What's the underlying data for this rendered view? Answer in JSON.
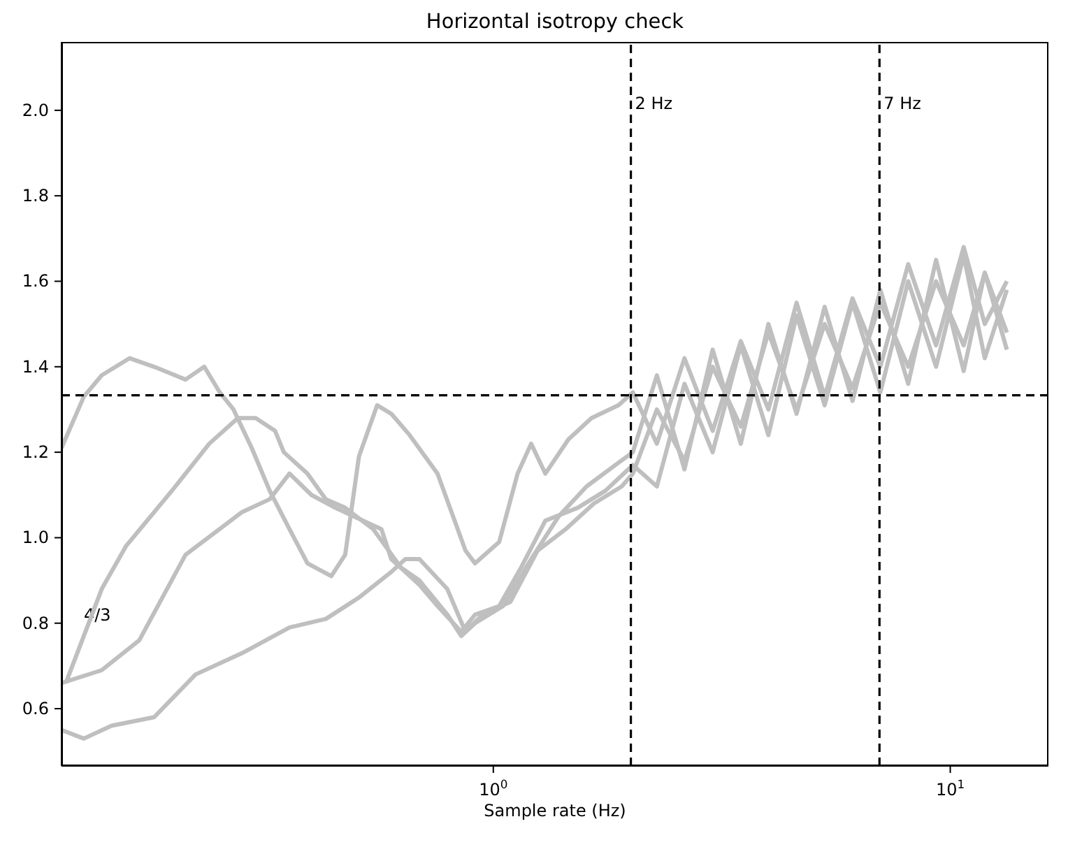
{
  "chart_data": {
    "type": "line",
    "title": "Horizontal isotropy check",
    "xlabel": "Sample rate (Hz)",
    "log": "x",
    "grid": false,
    "marker": "none",
    "line_style": "solid",
    "xlim": [
      0.1135,
      16.4
    ],
    "xticks": [
      {
        "value": 1,
        "label": "10$^{0}$"
      },
      {
        "value": 10,
        "label": "10$^{1}$"
      }
    ],
    "ylim": [
      0.466,
      2.16
    ],
    "yticks": [
      0.6,
      0.8,
      {
        "value": 1,
        "label": "1.0"
      },
      1.2,
      1.4,
      1.6,
      1.8,
      {
        "value": 2,
        "label": "2.0"
      }
    ],
    "series": [
      {
        "color": "#bfbfbf",
        "x": [
          0.1135,
          0.127,
          0.139,
          0.16,
          0.181,
          0.212,
          0.233,
          0.252,
          0.27,
          0.296,
          0.324,
          0.358,
          0.392,
          0.442,
          0.474,
          0.508,
          0.557,
          0.598,
          0.656,
          0.755,
          0.81,
          0.869,
          0.912,
          1.03,
          1.13,
          1.21,
          1.3,
          1.46,
          1.64,
          1.88,
          2.02,
          2.28,
          2.62,
          3.02,
          3.48,
          4.0,
          4.61,
          5.31,
          6.11,
          7.03,
          8.09,
          9.31,
          10.7,
          11.9,
          13.3
        ],
        "values": [
          1.21,
          1.33,
          1.38,
          1.42,
          1.4,
          1.37,
          1.4,
          1.34,
          1.3,
          1.21,
          1.11,
          1.02,
          0.94,
          0.91,
          0.96,
          1.19,
          1.31,
          1.29,
          1.24,
          1.15,
          1.06,
          0.97,
          0.94,
          0.99,
          1.15,
          1.22,
          1.15,
          1.23,
          1.28,
          1.31,
          1.34,
          1.22,
          1.42,
          1.25,
          1.46,
          1.3,
          1.55,
          1.33,
          1.56,
          1.4,
          1.64,
          1.45,
          1.68,
          1.5,
          1.6
        ]
      },
      {
        "color": "#bfbfbf",
        "x": [
          0.116,
          0.139,
          0.157,
          0.198,
          0.239,
          0.276,
          0.302,
          0.333,
          0.348,
          0.392,
          0.43,
          0.474,
          0.546,
          0.628,
          0.689,
          0.793,
          0.851,
          0.912,
          1.05,
          1.21,
          1.39,
          1.6,
          1.85,
          2.02,
          2.28,
          2.62,
          3.02,
          3.48,
          4.0,
          4.61,
          5.31,
          6.11,
          7.03,
          8.09,
          9.31,
          10.7,
          11.9,
          13.3
        ],
        "values": [
          0.66,
          0.88,
          0.98,
          1.11,
          1.22,
          1.28,
          1.28,
          1.25,
          1.2,
          1.15,
          1.09,
          1.07,
          1.02,
          0.93,
          0.9,
          0.82,
          0.77,
          0.8,
          0.84,
          0.95,
          1.05,
          1.12,
          1.17,
          1.2,
          1.38,
          1.16,
          1.44,
          1.22,
          1.5,
          1.29,
          1.54,
          1.32,
          1.58,
          1.36,
          1.65,
          1.39,
          1.62,
          1.44
        ]
      },
      {
        "color": "#bfbfbf",
        "x": [
          0.1135,
          0.139,
          0.168,
          0.212,
          0.282,
          0.324,
          0.358,
          0.4,
          0.451,
          0.569,
          0.598,
          0.689,
          0.755,
          0.851,
          0.912,
          1.03,
          1.15,
          1.3,
          1.53,
          1.76,
          2.02,
          2.28,
          2.62,
          3.02,
          3.48,
          4.0,
          4.61,
          5.31,
          6.11,
          7.03,
          8.09,
          9.31,
          10.7,
          11.9,
          13.3
        ],
        "values": [
          0.66,
          0.69,
          0.76,
          0.96,
          1.06,
          1.09,
          1.15,
          1.1,
          1.07,
          1.02,
          0.95,
          0.89,
          0.84,
          0.78,
          0.82,
          0.84,
          0.93,
          1.04,
          1.07,
          1.11,
          1.17,
          1.12,
          1.36,
          1.2,
          1.45,
          1.24,
          1.52,
          1.31,
          1.55,
          1.34,
          1.6,
          1.4,
          1.66,
          1.42,
          1.58
        ]
      },
      {
        "color": "#bfbfbf",
        "x": [
          0.1135,
          0.127,
          0.146,
          0.181,
          0.223,
          0.282,
          0.358,
          0.43,
          0.508,
          0.598,
          0.642,
          0.689,
          0.793,
          0.869,
          0.946,
          1.09,
          1.25,
          1.44,
          1.66,
          1.91,
          2.02,
          2.28,
          2.62,
          3.02,
          3.48,
          4.0,
          4.61,
          5.31,
          6.11,
          7.03,
          8.09,
          9.31,
          10.7,
          11.9,
          13.3
        ],
        "values": [
          0.55,
          0.53,
          0.56,
          0.58,
          0.68,
          0.73,
          0.79,
          0.81,
          0.86,
          0.92,
          0.95,
          0.95,
          0.88,
          0.78,
          0.82,
          0.85,
          0.97,
          1.02,
          1.08,
          1.12,
          1.15,
          1.3,
          1.18,
          1.4,
          1.26,
          1.48,
          1.3,
          1.5,
          1.35,
          1.55,
          1.4,
          1.6,
          1.45,
          1.62,
          1.48
        ]
      }
    ],
    "ref_lines": [
      {
        "axis": "y",
        "value": 1.3333,
        "color": "#000000",
        "line_style": "dashed"
      },
      {
        "axis": "x",
        "value": 2,
        "label": "2 Hz",
        "color": "#000000",
        "line_style": "dashed"
      },
      {
        "axis": "x",
        "value": 7,
        "label": "7 Hz",
        "color": "#000000",
        "line_style": "dashed"
      }
    ],
    "annotations": [
      "4/3"
    ]
  }
}
